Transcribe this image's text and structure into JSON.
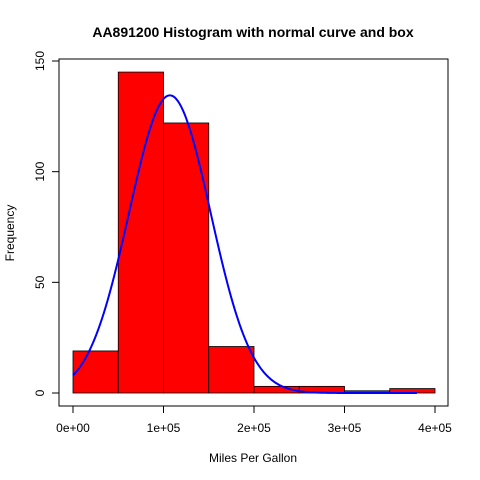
{
  "chart_data": {
    "type": "bar",
    "title": "AA891200 Histogram with normal curve and box",
    "xlabel": "Miles Per Gallon",
    "ylabel": "Frequency",
    "bins": [
      {
        "start": 0,
        "end": 50000,
        "count": 19
      },
      {
        "start": 50000,
        "end": 100000,
        "count": 145
      },
      {
        "start": 100000,
        "end": 150000,
        "count": 122
      },
      {
        "start": 150000,
        "end": 200000,
        "count": 21
      },
      {
        "start": 200000,
        "end": 250000,
        "count": 3
      },
      {
        "start": 250000,
        "end": 300000,
        "count": 3
      },
      {
        "start": 300000,
        "end": 350000,
        "count": 1
      },
      {
        "start": 350000,
        "end": 400000,
        "count": 2
      }
    ],
    "xlim": [
      0,
      400000
    ],
    "ylim": [
      0,
      150
    ],
    "x_ticks": [
      {
        "value": 0,
        "label": "0e+00"
      },
      {
        "value": 100000,
        "label": "1e+05"
      },
      {
        "value": 200000,
        "label": "2e+05"
      },
      {
        "value": 300000,
        "label": "3e+05"
      },
      {
        "value": 400000,
        "label": "4e+05"
      }
    ],
    "y_ticks": [
      {
        "value": 0,
        "label": "0"
      },
      {
        "value": 50,
        "label": "50"
      },
      {
        "value": 100,
        "label": "100"
      },
      {
        "value": 150,
        "label": "150"
      }
    ],
    "normal_curve": {
      "x_range": [
        0,
        380000
      ],
      "peak_x": 107000,
      "peak_y": 134.5,
      "sd": 45000
    },
    "bar_fill_color": "#ff0000",
    "bar_stroke_color": "#000000",
    "curve_color": "#0000ff",
    "grid": false,
    "legend": "none"
  }
}
